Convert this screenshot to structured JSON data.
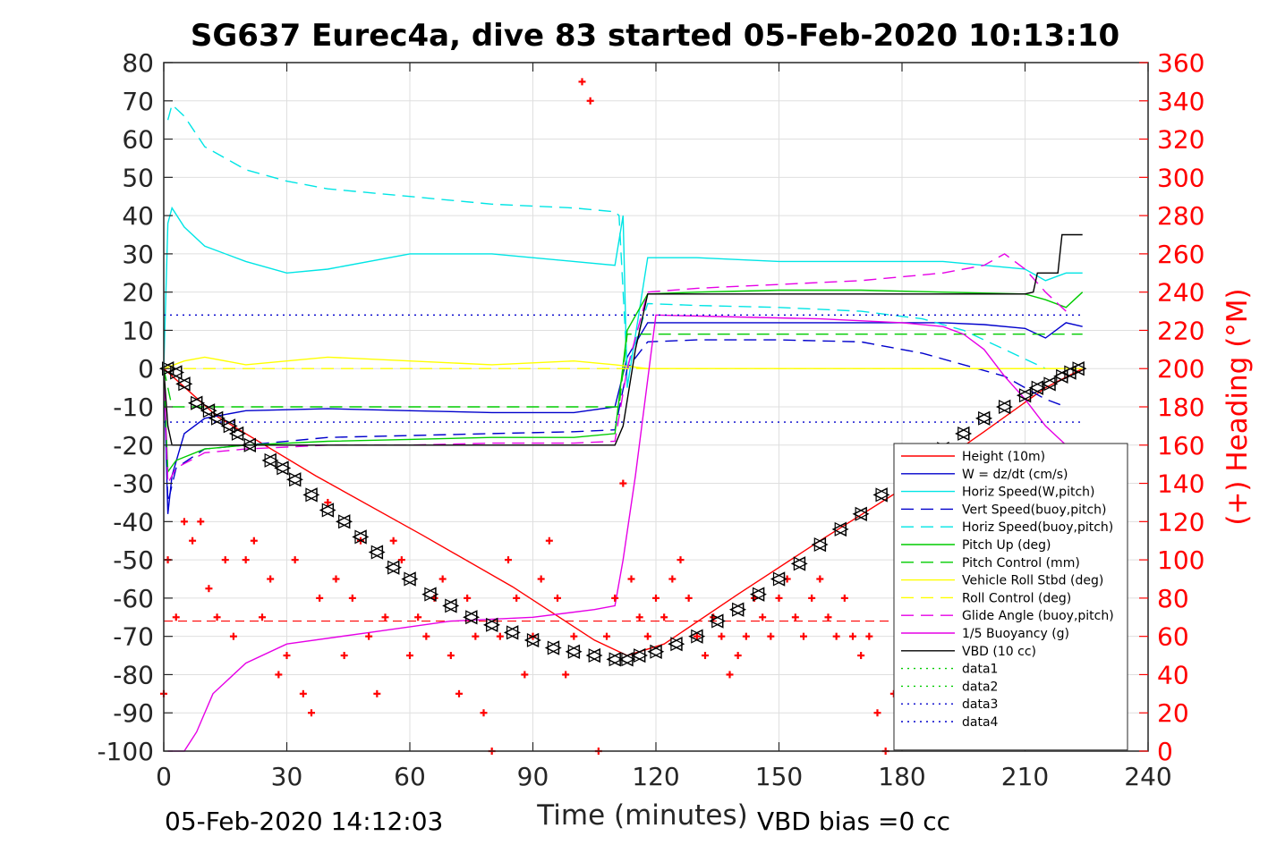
{
  "chart_data": {
    "type": "line",
    "title": "SG637 Eurec4a, dive 83 started 05-Feb-2020 10:13:10",
    "xlabel": "Time (minutes)",
    "ylabel": "",
    "ylabel_right": "(+) Heading (°M)",
    "xlim": [
      0,
      240
    ],
    "ylim": [
      -100,
      80
    ],
    "ylim_right": [
      0,
      360
    ],
    "xticks": [
      "0",
      "30",
      "60",
      "90",
      "120",
      "150",
      "180",
      "210",
      "240"
    ],
    "yticks": [
      "80",
      "70",
      "60",
      "50",
      "40",
      "30",
      "20",
      "10",
      "0",
      "-10",
      "-20",
      "-30",
      "-40",
      "-50",
      "-60",
      "-70",
      "-80",
      "-90",
      "-100"
    ],
    "yticks_right": [
      "360",
      "340",
      "320",
      "300",
      "280",
      "260",
      "240",
      "220",
      "200",
      "180",
      "160",
      "140",
      "120",
      "100",
      "80",
      "60",
      "40",
      "20",
      "0"
    ],
    "grid": true,
    "legend_position": "lower-right",
    "footer_left": "05-Feb-2020 14:12:03",
    "footer_right": "VBD bias =0 cc",
    "colors": {
      "height": "#ff0000",
      "w": "#0000cc",
      "hspeed": "#00e5e5",
      "pitch": "#00cc00",
      "roll": "#ffff00",
      "glide": "#e600e6",
      "buoy": "#e600e6",
      "vbd": "#000000",
      "heading": "#ff0000",
      "data12": "#00cc00",
      "data34": "#0000cc"
    },
    "series": [
      {
        "name": "Height (10m)",
        "style": "solid",
        "color": "#ff0000",
        "x": [
          0,
          13,
          37,
          63,
          85,
          105,
          113,
          122,
          140,
          160,
          180,
          200,
          215,
          224
        ],
        "y": [
          0,
          -12.5,
          -28,
          -43.5,
          -57,
          -71,
          -75,
          -72,
          -59,
          -45,
          -31.5,
          -16.5,
          -5,
          0
        ]
      },
      {
        "name": "W = dz/dt (cm/s)",
        "style": "solid",
        "color": "#0000cc",
        "x": [
          0,
          1,
          2,
          5,
          10,
          20,
          40,
          60,
          80,
          100,
          110,
          113,
          118,
          130,
          150,
          170,
          190,
          200,
          210,
          215,
          220,
          224
        ],
        "y": [
          0,
          -38,
          -28,
          -17,
          -13,
          -11,
          -10.5,
          -11,
          -11.5,
          -11.5,
          -10,
          3,
          12,
          12,
          12,
          12,
          12,
          11.5,
          10.5,
          8,
          12,
          11
        ]
      },
      {
        "name": "Horiz Speed(W,pitch)",
        "style": "solid",
        "color": "#00e5e5",
        "x": [
          0,
          1,
          2,
          5,
          10,
          20,
          30,
          40,
          60,
          80,
          100,
          110,
          112,
          113,
          118,
          130,
          150,
          170,
          190,
          200,
          210,
          215,
          220,
          224
        ],
        "y": [
          0,
          38,
          42,
          37,
          32,
          28,
          25,
          26,
          30,
          30,
          28,
          27,
          40,
          -5,
          29,
          29,
          28,
          28,
          28,
          27,
          26,
          23,
          25,
          25
        ]
      },
      {
        "name": "Vert Speed(buoy,pitch)",
        "style": "dashed",
        "color": "#0000cc",
        "x": [
          0,
          1,
          3,
          10,
          20,
          40,
          60,
          80,
          100,
          110,
          113,
          118,
          130,
          150,
          170,
          185,
          195,
          205,
          210,
          215,
          220
        ],
        "y": [
          0,
          -35,
          -26,
          -21,
          -20,
          -18,
          -17.5,
          -17,
          -16.5,
          -16,
          0,
          7,
          7.5,
          7.5,
          7,
          4,
          1,
          -2,
          -5,
          -8,
          -10
        ]
      },
      {
        "name": "Horiz Speed(buoy,pitch)",
        "style": "dashed",
        "color": "#00e5e5",
        "x": [
          1,
          2,
          5,
          10,
          20,
          30,
          40,
          60,
          80,
          100,
          110,
          111,
          113,
          118,
          130,
          150,
          170,
          185,
          195,
          205,
          215
        ],
        "y": [
          65,
          69,
          66,
          58,
          52,
          49,
          47,
          45,
          43,
          42,
          41,
          40,
          0,
          17,
          16.5,
          16,
          15,
          13,
          10,
          5,
          0
        ]
      },
      {
        "name": "Pitch Up (deg)",
        "style": "solid",
        "color": "#00cc00",
        "x": [
          0,
          1,
          3,
          10,
          20,
          40,
          60,
          80,
          100,
          110,
          113,
          118,
          130,
          150,
          170,
          190,
          210,
          215,
          220,
          224
        ],
        "y": [
          0,
          -27,
          -24,
          -21,
          -20,
          -19,
          -18.5,
          -18,
          -18,
          -17,
          10,
          19.5,
          20,
          20.5,
          20.5,
          20,
          19.5,
          18,
          16,
          20
        ]
      },
      {
        "name": "Pitch Control (mm)",
        "style": "dashed",
        "color": "#00cc00",
        "x": [
          0,
          2,
          10,
          111,
          113,
          118,
          210,
          224
        ],
        "y": [
          0,
          -10,
          -10,
          -10,
          9,
          9,
          9,
          9
        ]
      },
      {
        "name": "Vehicle Roll Stbd (deg)",
        "style": "solid",
        "color": "#ffff00",
        "x": [
          0,
          5,
          10,
          20,
          30,
          40,
          60,
          80,
          100,
          110,
          118,
          130,
          150,
          170,
          190,
          210,
          220,
          224
        ],
        "y": [
          0,
          2,
          3,
          1,
          2,
          3,
          2,
          1,
          2,
          1,
          0,
          0,
          0,
          0,
          0,
          0,
          0,
          0
        ]
      },
      {
        "name": "Roll Control (deg)",
        "style": "dashed",
        "color": "#ffff00",
        "x": [
          0,
          224
        ],
        "y": [
          0,
          0
        ]
      },
      {
        "name": "Glide Angle (buoy,pitch)",
        "style": "dashed",
        "color": "#e600e6",
        "x": [
          0,
          1,
          3,
          10,
          20,
          40,
          60,
          80,
          100,
          110,
          113,
          118,
          130,
          150,
          170,
          190,
          200,
          205,
          210,
          215,
          220
        ],
        "y": [
          0,
          -30,
          -26,
          -22,
          -21,
          -20,
          -20,
          -19.5,
          -19.5,
          -19,
          0,
          20,
          21,
          22,
          23,
          25,
          27,
          30,
          26,
          20,
          15
        ]
      },
      {
        "name": "1/5 Buoyancy (g)",
        "style": "solid",
        "color": "#e600e6",
        "x": [
          1,
          3,
          5,
          8,
          12,
          20,
          30,
          50,
          70,
          90,
          105,
          110,
          112,
          115,
          120,
          140,
          160,
          180,
          190,
          195,
          200,
          205,
          210,
          215,
          220
        ],
        "y": [
          -100,
          -100,
          -100,
          -95,
          -85,
          -77,
          -72,
          -69,
          -66,
          -65,
          -63,
          -62,
          -50,
          -28,
          14,
          13.5,
          13,
          12,
          11,
          9,
          5,
          -2,
          -8,
          -15,
          -20
        ]
      },
      {
        "name": "VBD (10 cc)",
        "style": "solid",
        "color": "#000000",
        "x": [
          0,
          1,
          2,
          110,
          112,
          115,
          118,
          210,
          212,
          213,
          218,
          219,
          222,
          224
        ],
        "y": [
          0,
          -15,
          -20,
          -20,
          -15,
          5,
          19.5,
          19.5,
          20,
          25,
          25,
          35,
          35,
          35
        ]
      },
      {
        "name": "data1",
        "style": "dotted",
        "color": "#00cc00",
        "x": [],
        "y": []
      },
      {
        "name": "data2",
        "style": "dotted",
        "color": "#00cc00",
        "x": [],
        "y": []
      },
      {
        "name": "data3",
        "style": "dotted",
        "color": "#0000cc",
        "x": [
          0,
          224
        ],
        "y": [
          14,
          14
        ]
      },
      {
        "name": "data4",
        "style": "dotted",
        "color": "#0000cc",
        "x": [
          0,
          224
        ],
        "y": [
          -14,
          -14
        ]
      }
    ],
    "heading": {
      "marker": "+",
      "color": "#ff0000",
      "axis": "right",
      "x": [
        0,
        1,
        3,
        5,
        7,
        9,
        11,
        13,
        15,
        17,
        20,
        22,
        24,
        26,
        28,
        30,
        32,
        34,
        36,
        38,
        40,
        42,
        44,
        46,
        48,
        50,
        52,
        54,
        56,
        58,
        60,
        62,
        64,
        66,
        68,
        70,
        72,
        74,
        76,
        78,
        80,
        82,
        84,
        86,
        88,
        90,
        92,
        94,
        96,
        98,
        100,
        102,
        104,
        106,
        108,
        110,
        112,
        114,
        116,
        118,
        120,
        122,
        124,
        126,
        128,
        130,
        132,
        134,
        136,
        138,
        140,
        142,
        144,
        146,
        148,
        150,
        152,
        154,
        156,
        158,
        160,
        162,
        164,
        166,
        168,
        170,
        172,
        174,
        176,
        178,
        180
      ],
      "y": [
        30,
        100,
        70,
        120,
        110,
        120,
        85,
        70,
        100,
        60,
        100,
        110,
        70,
        90,
        40,
        50,
        100,
        30,
        20,
        80,
        130,
        90,
        50,
        80,
        110,
        60,
        30,
        70,
        110,
        100,
        50,
        70,
        60,
        80,
        90,
        50,
        30,
        80,
        60,
        20,
        0,
        60,
        100,
        80,
        40,
        60,
        90,
        110,
        80,
        40,
        60,
        350,
        340,
        0,
        60,
        80,
        140,
        90,
        70,
        60,
        80,
        70,
        90,
        100,
        80,
        60,
        50,
        70,
        60,
        40,
        50,
        60,
        80,
        70,
        60,
        80,
        90,
        70,
        60,
        80,
        90,
        70,
        60,
        80,
        60,
        50,
        60,
        20,
        0,
        30,
        90
      ]
    },
    "ref_line": {
      "y": -66,
      "color": "#ff0000",
      "style": "dashed",
      "x": [
        0,
        190
      ]
    },
    "triangle_markers": {
      "x": [
        1,
        3,
        5,
        8,
        11,
        13,
        16,
        18,
        21,
        26,
        29,
        32,
        36,
        40,
        44,
        48,
        52,
        56,
        60,
        65,
        70,
        75,
        80,
        85,
        90,
        95,
        100,
        105,
        110,
        113,
        116,
        120,
        125,
        130,
        135,
        140,
        145,
        150,
        155,
        160,
        165,
        170,
        175,
        180,
        185,
        190,
        195,
        200,
        205,
        210,
        213,
        216,
        219,
        221,
        223
      ],
      "y": [
        0,
        -1,
        -4,
        -9,
        -11,
        -13,
        -15,
        -17,
        -20,
        -24,
        -26,
        -29,
        -33,
        -37,
        -40,
        -44,
        -48,
        -52,
        -55,
        -59,
        -62,
        -65,
        -67,
        -69,
        -71,
        -73,
        -74,
        -75,
        -76,
        -76,
        -75,
        -74,
        -72,
        -70,
        -66,
        -63,
        -59,
        -55,
        -51,
        -46,
        -42,
        -38,
        -33,
        -29,
        -25,
        -21,
        -17,
        -13,
        -10,
        -7,
        -5,
        -4,
        -2,
        -1,
        0
      ]
    }
  }
}
